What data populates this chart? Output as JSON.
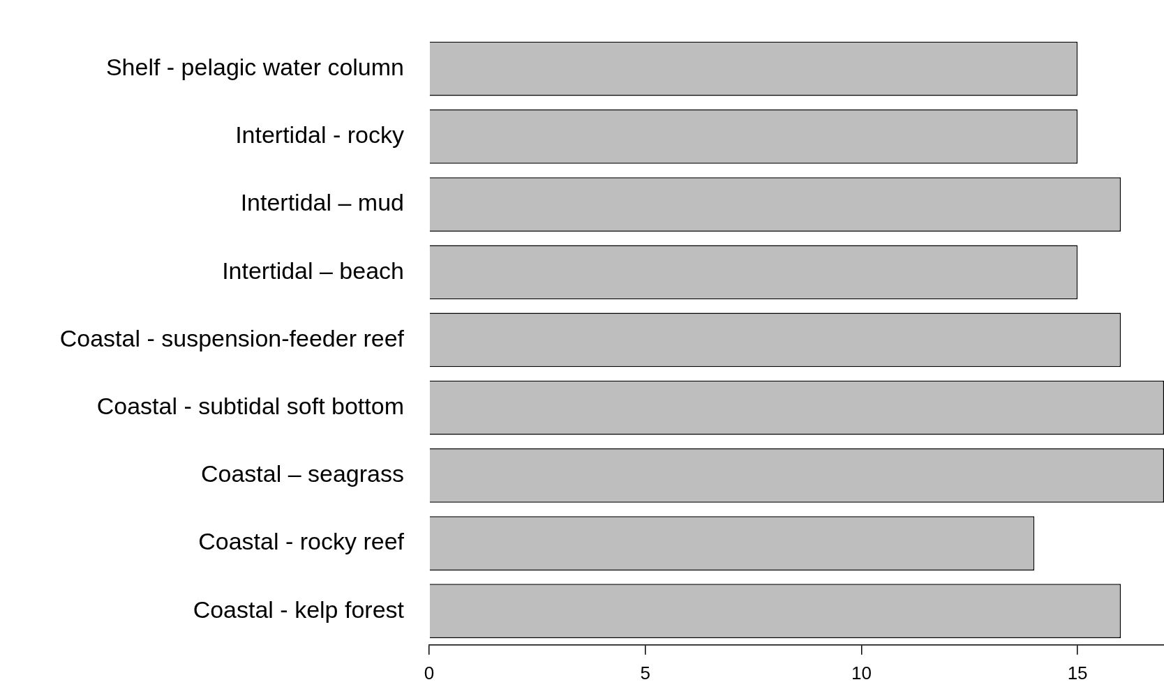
{
  "chart_data": {
    "type": "bar",
    "orientation": "horizontal",
    "categories": [
      "Shelf - pelagic water column",
      "Intertidal - rocky",
      "Intertidal – mud",
      "Intertidal – beach",
      "Coastal - suspension-feeder reef",
      "Coastal - subtidal soft bottom",
      "Coastal – seagrass",
      "Coastal - rocky reef",
      "Coastal - kelp forest"
    ],
    "values": [
      15,
      15,
      16,
      15,
      16,
      17,
      17,
      14,
      16
    ],
    "color": "#bebebe",
    "xlim": [
      0,
      17
    ],
    "xticks": [
      0,
      5,
      10,
      15
    ],
    "grid": false,
    "legend": false
  }
}
